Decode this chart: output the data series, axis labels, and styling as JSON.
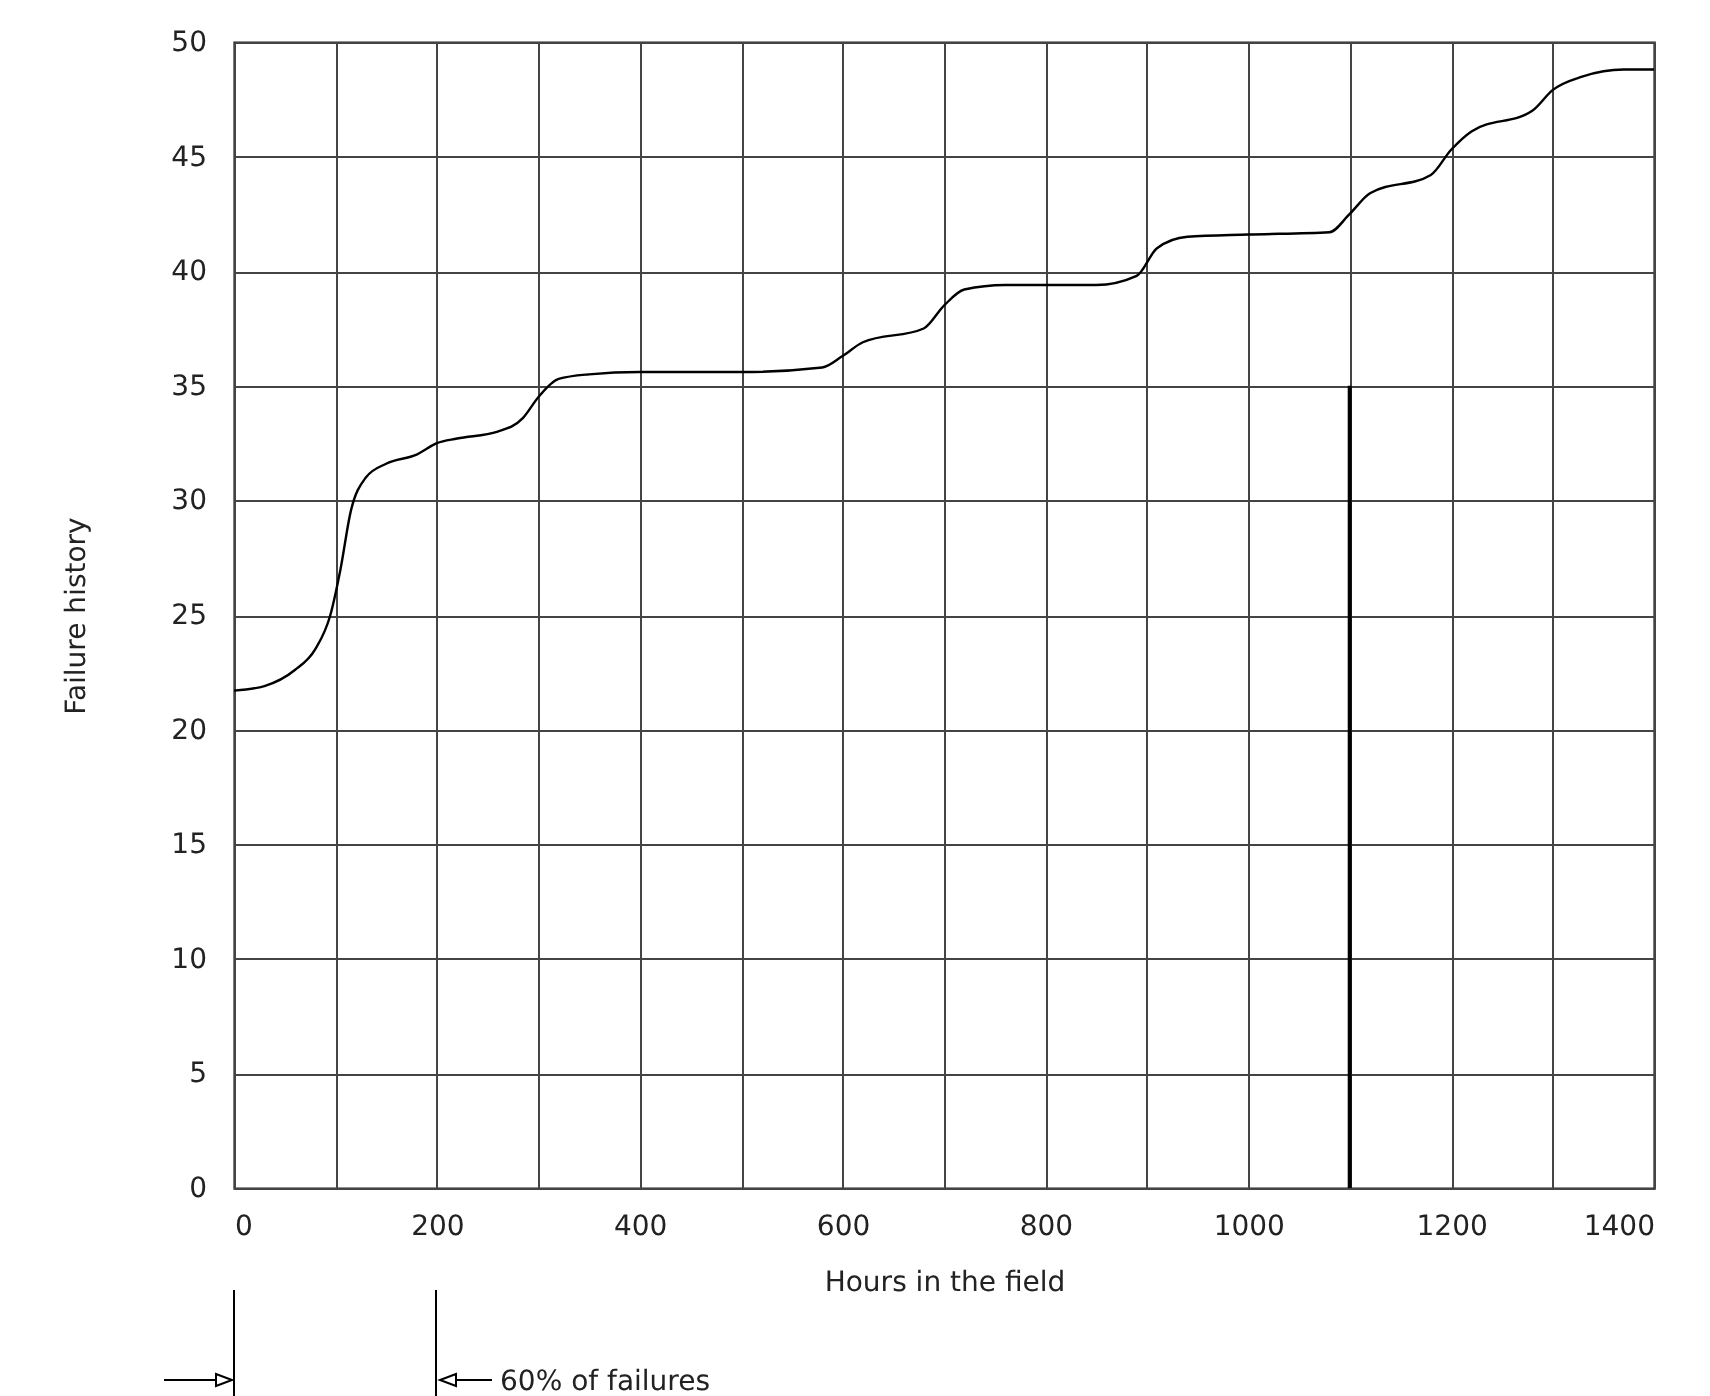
{
  "chart_data": {
    "type": "line",
    "xlabel": "Hours in the field",
    "ylabel": "Failure history",
    "xlim": [
      0,
      1400
    ],
    "ylim": [
      0,
      50
    ],
    "xticks": [
      0,
      {
        "value": 100,
        "label": null
      },
      200,
      {
        "value": 300,
        "label": null
      },
      400,
      {
        "value": 500,
        "label": null
      },
      600,
      {
        "value": 700,
        "label": null
      },
      800,
      {
        "value": 900,
        "label": null
      },
      1000,
      {
        "value": 1100,
        "label": null
      },
      1200,
      {
        "value": 1300,
        "label": null
      },
      1400
    ],
    "yticks": [
      0,
      5,
      10,
      15,
      20,
      25,
      30,
      35,
      40,
      45,
      50
    ],
    "grid": true,
    "line_style": "solid",
    "marker": "none",
    "series": [
      {
        "color": "#000000",
        "x": [
          0,
          30,
          60,
          80,
          95,
          105,
          115,
          130,
          150,
          180,
          200,
          220,
          260,
          285,
          300,
          320,
          350,
          400,
          500,
          580,
          600,
          620,
          680,
          700,
          720,
          760,
          850,
          890,
          910,
          940,
          1000,
          1080,
          1100,
          1120,
          1180,
          1200,
          1220,
          1280,
          1300,
          1330,
          1370,
          1400
        ],
        "values": [
          21.7,
          21.9,
          22.6,
          23.5,
          25,
          27,
          29.5,
          31,
          31.6,
          32,
          32.5,
          32.7,
          33,
          33.6,
          34.5,
          35.3,
          35.5,
          35.6,
          35.6,
          35.8,
          36.3,
          36.9,
          37.5,
          38.5,
          39.2,
          39.4,
          39.4,
          39.8,
          41,
          41.5,
          41.6,
          41.7,
          42.5,
          43.4,
          44.2,
          45.3,
          46.1,
          47,
          47.9,
          48.5,
          48.8,
          48.8
        ]
      },
      {
        "color": "#000000",
        "x": [
          1100,
          1100
        ],
        "values": [
          0,
          35
        ]
      }
    ],
    "annotations": [
      "60% of failures"
    ]
  }
}
